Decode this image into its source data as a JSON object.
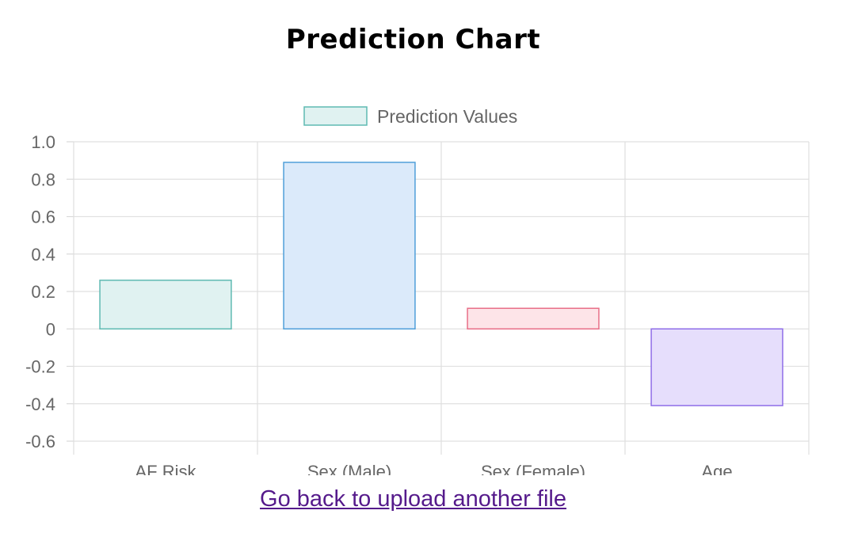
{
  "page": {
    "title": "Prediction Chart",
    "back_link": "Go back to upload another file"
  },
  "chart_data": {
    "type": "bar",
    "categories": [
      "AF Risk",
      "Sex (Male)",
      "Sex (Female)",
      "Age"
    ],
    "series": [
      {
        "name": "Prediction Values",
        "values": [
          0.26,
          0.89,
          0.11,
          -0.41
        ]
      }
    ],
    "y_ticks": [
      "1.0",
      "0.8",
      "0.6",
      "0.4",
      "0.2",
      "0",
      "-0.2",
      "-0.4",
      "-0.6"
    ],
    "ylim": [
      -0.6,
      1.0
    ],
    "grid": true,
    "legend_position": "top",
    "bar_colors": [
      {
        "fill": "#e0f2f1",
        "stroke": "#5fbab2"
      },
      {
        "fill": "#dbeafa",
        "stroke": "#4f9fd9"
      },
      {
        "fill": "#fde4e8",
        "stroke": "#e86f88"
      },
      {
        "fill": "#e6defc",
        "stroke": "#8f6ee8"
      }
    ],
    "legend_color": {
      "fill": "#e0f2f1",
      "stroke": "#5fbab2"
    }
  }
}
